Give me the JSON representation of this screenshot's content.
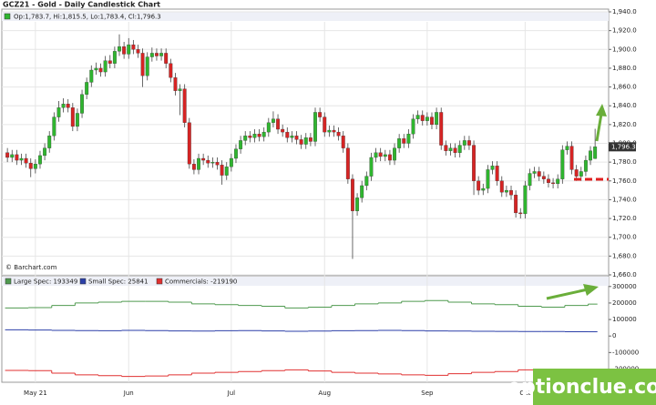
{
  "chart_data": [
    {
      "type": "candlestick",
      "title": "GCZ21 - Gold - Daily Candlestick Chart",
      "legend": "Op:1,783.7, Hi:1,815.5, Lo:1,783.4, Cl:1,796.3",
      "source": "© Barchart.com",
      "up_color": "#2fb52f",
      "down_color": "#d62424",
      "last_label": "1,796.3",
      "xlim": [
        -1.2,
        128.9
      ],
      "xticks": [
        {
          "value": 6,
          "label": "May 21"
        },
        {
          "value": 26,
          "label": "Jun"
        },
        {
          "value": 48,
          "label": "Jul"
        },
        {
          "value": 68,
          "label": "Aug"
        },
        {
          "value": 90,
          "label": "Sep"
        },
        {
          "value": 111,
          "label": "Oct"
        }
      ],
      "ylim": [
        1660,
        1940
      ],
      "yticks": [
        {
          "value": 1660,
          "label": "1,660.0"
        },
        {
          "value": 1680,
          "label": "1,680.0"
        },
        {
          "value": 1700,
          "label": "1,700.0"
        },
        {
          "value": 1720,
          "label": "1,720.0"
        },
        {
          "value": 1740,
          "label": "1,740.0"
        },
        {
          "value": 1760,
          "label": "1,760.0"
        },
        {
          "value": 1780,
          "label": "1,780.0"
        },
        {
          "value": 1800,
          "label": "1,800.0"
        },
        {
          "value": 1820,
          "label": "1,820.0"
        },
        {
          "value": 1840,
          "label": "1,840.0"
        },
        {
          "value": 1860,
          "label": "1,860.0"
        },
        {
          "value": 1880,
          "label": "1,880.0"
        },
        {
          "value": 1900,
          "label": "1,900.0"
        },
        {
          "value": 1920,
          "label": "1,920.0"
        },
        {
          "value": 1940,
          "label": "1,940.0"
        }
      ],
      "grid": true,
      "ohlc": [
        [
          1790,
          1795,
          1780,
          1785
        ],
        [
          1785,
          1793,
          1780,
          1788
        ],
        [
          1788,
          1793,
          1777,
          1782
        ],
        [
          1782,
          1789,
          1777,
          1784
        ],
        [
          1784,
          1789,
          1774,
          1779
        ],
        [
          1779,
          1784,
          1764,
          1773
        ],
        [
          1773,
          1783,
          1768,
          1778
        ],
        [
          1778,
          1792,
          1773,
          1787
        ],
        [
          1787,
          1800,
          1782,
          1795
        ],
        [
          1795,
          1813,
          1790,
          1808
        ],
        [
          1808,
          1833,
          1803,
          1828
        ],
        [
          1828,
          1845,
          1823,
          1838
        ],
        [
          1838,
          1848,
          1833,
          1842
        ],
        [
          1842,
          1847,
          1833,
          1838
        ],
        [
          1838,
          1843,
          1813,
          1818
        ],
        [
          1818,
          1837,
          1813,
          1832
        ],
        [
          1832,
          1857,
          1827,
          1852
        ],
        [
          1852,
          1870,
          1847,
          1865
        ],
        [
          1865,
          1883,
          1860,
          1878
        ],
        [
          1878,
          1886,
          1873,
          1880
        ],
        [
          1880,
          1885,
          1871,
          1876
        ],
        [
          1876,
          1893,
          1871,
          1888
        ],
        [
          1888,
          1894,
          1880,
          1885
        ],
        [
          1885,
          1903,
          1880,
          1898
        ],
        [
          1898,
          1916,
          1893,
          1903
        ],
        [
          1903,
          1908,
          1890,
          1895
        ],
        [
          1895,
          1912,
          1890,
          1905
        ],
        [
          1905,
          1910,
          1895,
          1900
        ],
        [
          1900,
          1905,
          1891,
          1896
        ],
        [
          1896,
          1901,
          1860,
          1872
        ],
        [
          1872,
          1897,
          1867,
          1892
        ],
        [
          1892,
          1902,
          1887,
          1896
        ],
        [
          1896,
          1901,
          1888,
          1893
        ],
        [
          1893,
          1901,
          1888,
          1896
        ],
        [
          1896,
          1901,
          1880,
          1885
        ],
        [
          1885,
          1890,
          1865,
          1870
        ],
        [
          1870,
          1875,
          1851,
          1856
        ],
        [
          1856,
          1863,
          1830,
          1858
        ],
        [
          1858,
          1863,
          1817,
          1822
        ],
        [
          1822,
          1827,
          1773,
          1778
        ],
        [
          1778,
          1783,
          1767,
          1772
        ],
        [
          1772,
          1789,
          1767,
          1784
        ],
        [
          1784,
          1789,
          1777,
          1782
        ],
        [
          1782,
          1787,
          1774,
          1779
        ],
        [
          1779,
          1785,
          1774,
          1780
        ],
        [
          1780,
          1785,
          1772,
          1777
        ],
        [
          1777,
          1782,
          1756,
          1766
        ],
        [
          1766,
          1780,
          1761,
          1775
        ],
        [
          1775,
          1789,
          1770,
          1784
        ],
        [
          1784,
          1799,
          1779,
          1794
        ],
        [
          1794,
          1808,
          1789,
          1803
        ],
        [
          1803,
          1813,
          1798,
          1808
        ],
        [
          1808,
          1813,
          1801,
          1806
        ],
        [
          1806,
          1815,
          1801,
          1810
        ],
        [
          1810,
          1815,
          1802,
          1807
        ],
        [
          1807,
          1817,
          1802,
          1812
        ],
        [
          1812,
          1827,
          1807,
          1822
        ],
        [
          1822,
          1834,
          1817,
          1826
        ],
        [
          1826,
          1831,
          1810,
          1815
        ],
        [
          1815,
          1820,
          1807,
          1812
        ],
        [
          1812,
          1817,
          1801,
          1806
        ],
        [
          1806,
          1813,
          1801,
          1808
        ],
        [
          1808,
          1813,
          1799,
          1804
        ],
        [
          1804,
          1809,
          1794,
          1799
        ],
        [
          1799,
          1811,
          1794,
          1806
        ],
        [
          1806,
          1811,
          1797,
          1802
        ],
        [
          1802,
          1838,
          1797,
          1833
        ],
        [
          1833,
          1838,
          1823,
          1828
        ],
        [
          1828,
          1833,
          1807,
          1812
        ],
        [
          1812,
          1819,
          1807,
          1814
        ],
        [
          1814,
          1819,
          1807,
          1812
        ],
        [
          1812,
          1817,
          1803,
          1808
        ],
        [
          1808,
          1813,
          1790,
          1795
        ],
        [
          1795,
          1800,
          1757,
          1762
        ],
        [
          1762,
          1767,
          1677,
          1728
        ],
        [
          1728,
          1747,
          1723,
          1742
        ],
        [
          1742,
          1760,
          1737,
          1755
        ],
        [
          1755,
          1770,
          1750,
          1765
        ],
        [
          1765,
          1790,
          1760,
          1785
        ],
        [
          1785,
          1795,
          1780,
          1790
        ],
        [
          1790,
          1795,
          1781,
          1786
        ],
        [
          1786,
          1793,
          1781,
          1788
        ],
        [
          1788,
          1793,
          1777,
          1782
        ],
        [
          1782,
          1800,
          1777,
          1795
        ],
        [
          1795,
          1810,
          1790,
          1805
        ],
        [
          1805,
          1810,
          1795,
          1800
        ],
        [
          1800,
          1815,
          1795,
          1810
        ],
        [
          1810,
          1831,
          1805,
          1826
        ],
        [
          1826,
          1835,
          1821,
          1830
        ],
        [
          1830,
          1835,
          1819,
          1824
        ],
        [
          1824,
          1833,
          1819,
          1828
        ],
        [
          1828,
          1833,
          1815,
          1820
        ],
        [
          1820,
          1838,
          1815,
          1833
        ],
        [
          1833,
          1838,
          1793,
          1798
        ],
        [
          1798,
          1803,
          1787,
          1792
        ],
        [
          1792,
          1800,
          1787,
          1795
        ],
        [
          1795,
          1800,
          1785,
          1790
        ],
        [
          1790,
          1803,
          1785,
          1798
        ],
        [
          1798,
          1808,
          1793,
          1803
        ],
        [
          1803,
          1808,
          1793,
          1798
        ],
        [
          1798,
          1803,
          1745,
          1760
        ],
        [
          1760,
          1765,
          1745,
          1750
        ],
        [
          1750,
          1757,
          1745,
          1752
        ],
        [
          1752,
          1777,
          1747,
          1772
        ],
        [
          1772,
          1781,
          1767,
          1776
        ],
        [
          1776,
          1781,
          1755,
          1760
        ],
        [
          1760,
          1765,
          1743,
          1748
        ],
        [
          1748,
          1755,
          1743,
          1750
        ],
        [
          1750,
          1755,
          1740,
          1745
        ],
        [
          1745,
          1750,
          1721,
          1726
        ],
        [
          1726,
          1731,
          1720,
          1725
        ],
        [
          1725,
          1760,
          1720,
          1755
        ],
        [
          1755,
          1773,
          1750,
          1768
        ],
        [
          1768,
          1775,
          1763,
          1770
        ],
        [
          1770,
          1775,
          1760,
          1765
        ],
        [
          1765,
          1770,
          1757,
          1762
        ],
        [
          1762,
          1767,
          1753,
          1758
        ],
        [
          1758,
          1763,
          1752,
          1757
        ],
        [
          1757,
          1767,
          1752,
          1762
        ],
        [
          1762,
          1798,
          1757,
          1793
        ],
        [
          1793,
          1802,
          1788,
          1797
        ],
        [
          1797,
          1802,
          1767,
          1772
        ],
        [
          1772,
          1777,
          1760,
          1765
        ],
        [
          1765,
          1775,
          1760,
          1770
        ],
        [
          1770,
          1787,
          1765,
          1782
        ],
        [
          1782,
          1797,
          1777,
          1792
        ],
        [
          1783.7,
          1815.5,
          1783.4,
          1796.3
        ]
      ]
    },
    {
      "type": "step",
      "x": [
        0,
        5,
        10,
        15,
        20,
        25,
        30,
        35,
        40,
        45,
        50,
        55,
        60,
        65,
        70,
        75,
        80,
        85,
        90,
        95,
        100,
        105,
        110,
        115,
        120,
        125
      ],
      "ylim": [
        -280000,
        365000
      ],
      "yticks": [
        300000,
        200000,
        100000,
        0,
        -100000,
        -200000
      ],
      "series": [
        {
          "name": "Large Spec: 193349",
          "color": "#4f9a4f",
          "values": [
            170000,
            172000,
            185000,
            200000,
            205000,
            210000,
            210000,
            205000,
            195000,
            190000,
            185000,
            180000,
            170000,
            175000,
            185000,
            195000,
            200000,
            210000,
            215000,
            205000,
            195000,
            190000,
            180000,
            175000,
            185000,
            193349
          ]
        },
        {
          "name": "Small Spec: 25841",
          "color": "#2b3fa8",
          "values": [
            38000,
            36000,
            34000,
            33000,
            32000,
            34000,
            33000,
            31000,
            30000,
            32000,
            33000,
            31000,
            29000,
            30000,
            32000,
            33000,
            34000,
            33000,
            31000,
            30000,
            29000,
            28000,
            27000,
            27000,
            26000,
            25841
          ]
        },
        {
          "name": "Commercials: -219190",
          "color": "#e03030",
          "values": [
            -208000,
            -210000,
            -225000,
            -235000,
            -240000,
            -245000,
            -242000,
            -235000,
            -225000,
            -220000,
            -215000,
            -210000,
            -205000,
            -212000,
            -220000,
            -225000,
            -230000,
            -235000,
            -238000,
            -228000,
            -220000,
            -215000,
            -205000,
            -200000,
            -212000,
            -219190
          ]
        }
      ]
    },
    {
      "type": "watermark",
      "text": "optionclue.com"
    }
  ]
}
